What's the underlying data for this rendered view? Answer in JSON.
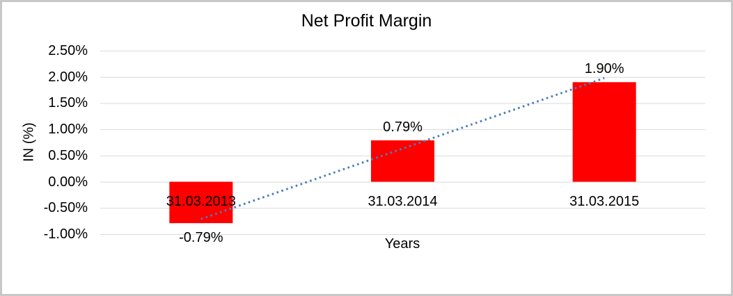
{
  "frame": {
    "background": "#ffffff",
    "border_color": "#c7c7c7"
  },
  "chart_data": {
    "type": "bar",
    "title": "Net Profit Margin",
    "xlabel": "Years",
    "ylabel": "IN (%)",
    "categories": [
      "31.03.2013",
      "31.03.2014",
      "31.03.2015"
    ],
    "series": [
      {
        "name": "Net Profit Margin",
        "values": [
          -0.79,
          0.79,
          1.9
        ]
      }
    ],
    "data_labels": [
      "-0.79%",
      "0.79%",
      "1.90%"
    ],
    "ylim": [
      -1.0,
      2.5
    ],
    "ytick_step": 0.5,
    "ytick_labels": [
      "2.50%",
      "2.00%",
      "1.50%",
      "1.00%",
      "0.50%",
      "0.00%",
      "-0.50%",
      "-1.00%"
    ],
    "grid": true,
    "legend": false,
    "trendline": {
      "type": "linear",
      "style": "dotted"
    },
    "colors": {
      "bar": "#ff0000",
      "gridline": "#d9d9d9",
      "trendline": "#4a7ebb",
      "text": "#000000"
    }
  }
}
